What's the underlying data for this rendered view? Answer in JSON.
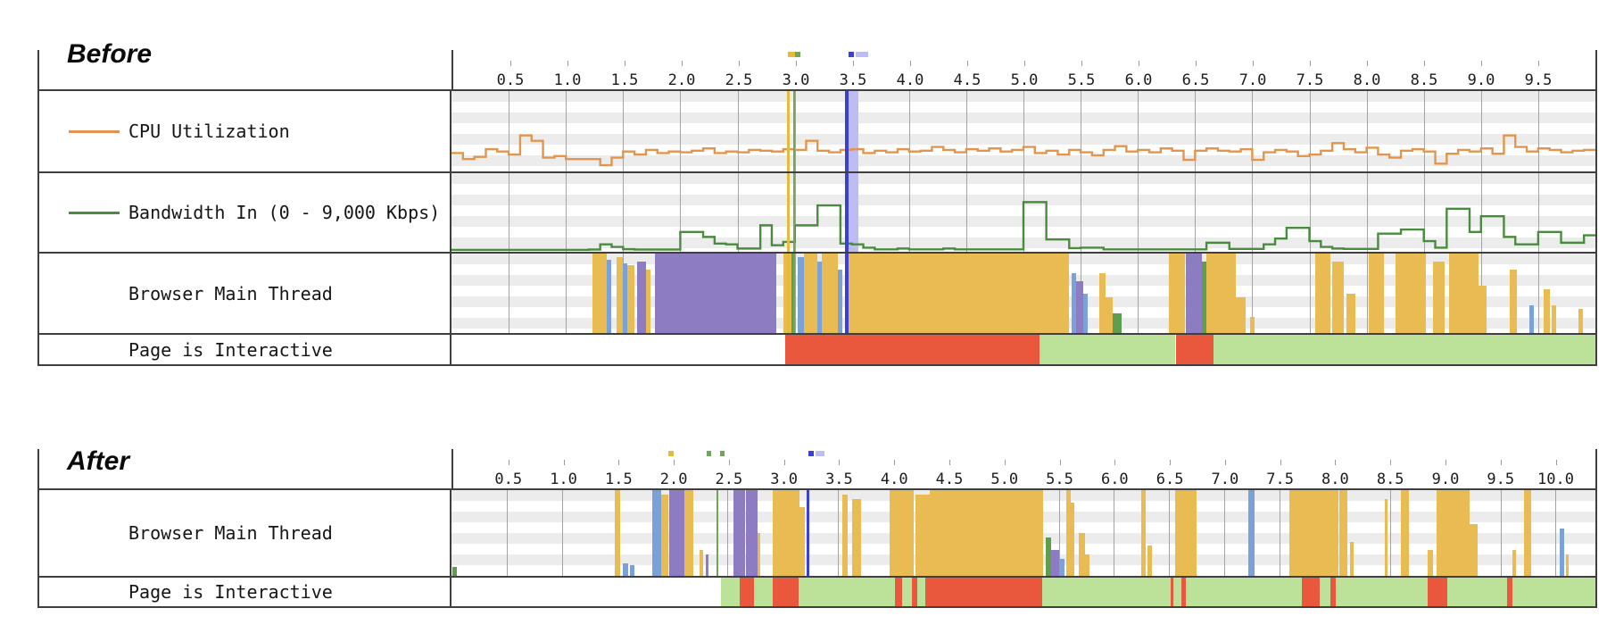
{
  "colors": {
    "cpu_line": "#e2954e",
    "bw_line": "#4a8c3f",
    "thread_script": "#e8bc52",
    "thread_layout": "#8e7cc3",
    "thread_paint": "#5f9e4e",
    "thread_comm": "#7aa2d8",
    "interactive_red": "#e9573d",
    "interactive_green": "#bce29a",
    "marker_gold": "#e3bb3d",
    "marker_green": "#74a35a",
    "marker_blue_dark": "#3d3fd4",
    "marker_blue_light": "#bdbdf5",
    "stripe_gray": "#ececec",
    "grid_line": "#a3a3a3",
    "border_dark": "#3f3f3f"
  },
  "chart_data": [
    {
      "id": "before",
      "title": "Before",
      "type": "timeline",
      "x_range": [
        0,
        10.0
      ],
      "ticks": [
        0.5,
        1.0,
        1.5,
        2.0,
        2.5,
        3.0,
        3.5,
        4.0,
        4.5,
        5.0,
        5.5,
        6.0,
        6.5,
        7.0,
        7.5,
        8.0,
        8.5,
        9.0,
        9.5
      ],
      "axis_marks": [
        {
          "t": 2.93,
          "color_key": "marker_gold",
          "w": 8
        },
        {
          "t": 2.99,
          "color_key": "marker_green",
          "w": 6
        },
        {
          "t": 3.46,
          "color_key": "marker_blue_dark",
          "w": 6
        },
        {
          "t": 3.52,
          "color_key": "marker_blue_light",
          "w": 14
        }
      ],
      "markers": [
        {
          "kind": "band",
          "t": 3.46,
          "t2": 3.56,
          "color_key": "marker_blue_light"
        },
        {
          "kind": "line",
          "t": 2.93,
          "w": 3,
          "color_key": "marker_gold"
        },
        {
          "kind": "line",
          "t": 2.99,
          "w": 2,
          "color_key": "marker_green"
        },
        {
          "kind": "line",
          "t": 3.44,
          "w": 4,
          "color_key": "marker_blue_dark"
        }
      ],
      "rows": [
        {
          "kind": "line",
          "label": "CPU Utilization",
          "color_key": "cpu_line",
          "y_range": [
            0,
            100
          ],
          "sample_step": 0.1,
          "values": [
            22,
            14,
            17,
            27,
            24,
            20,
            45,
            38,
            16,
            18,
            14,
            14,
            14,
            6,
            16,
            24,
            20,
            26,
            22,
            24,
            23,
            25,
            28,
            22,
            24,
            23,
            26,
            25,
            24,
            27,
            26,
            38,
            25,
            23,
            26,
            27,
            22,
            25,
            23,
            27,
            24,
            25,
            30,
            26,
            23,
            27,
            25,
            28,
            24,
            26,
            30,
            22,
            25,
            20,
            26,
            23,
            19,
            26,
            31,
            24,
            26,
            23,
            28,
            25,
            13,
            25,
            28,
            25,
            24,
            27,
            13,
            23,
            26,
            24,
            18,
            20,
            25,
            35,
            27,
            23,
            29,
            20,
            16,
            25,
            27,
            24,
            8,
            21,
            26,
            24,
            28,
            21,
            45,
            30,
            24,
            28,
            26,
            23,
            25,
            26
          ]
        },
        {
          "kind": "line",
          "label": "Bandwidth In (0 - 9,000 Kbps)",
          "color_key": "bw_line",
          "y_range": [
            0,
            9000
          ],
          "sample_step": 0.1,
          "values": [
            50,
            50,
            50,
            50,
            50,
            50,
            50,
            50,
            50,
            50,
            50,
            50,
            80,
            700,
            400,
            120,
            80,
            80,
            80,
            80,
            2200,
            2200,
            1600,
            800,
            700,
            200,
            200,
            3000,
            600,
            1000,
            3000,
            3000,
            5400,
            5400,
            800,
            700,
            300,
            100,
            100,
            200,
            100,
            100,
            100,
            200,
            100,
            100,
            100,
            100,
            100,
            100,
            5800,
            5800,
            1300,
            1300,
            250,
            300,
            300,
            100,
            100,
            100,
            100,
            100,
            100,
            100,
            100,
            100,
            900,
            900,
            150,
            150,
            150,
            700,
            1400,
            2700,
            2700,
            1100,
            400,
            200,
            150,
            150,
            150,
            2000,
            2000,
            2500,
            2500,
            1100,
            300,
            5000,
            5000,
            2200,
            4100,
            4100,
            1600,
            700,
            700,
            2200,
            2200,
            900,
            900,
            1800
          ]
        },
        {
          "kind": "bars",
          "label": "Browser Main Thread",
          "segments": [
            [
              1.23,
              1.36,
              "script",
              1.0
            ],
            [
              1.36,
              1.4,
              "comm",
              0.92
            ],
            [
              1.44,
              1.5,
              "script",
              0.96
            ],
            [
              1.5,
              1.54,
              "comm",
              0.88
            ],
            [
              1.54,
              1.6,
              "script",
              0.85
            ],
            [
              1.62,
              1.7,
              "layout",
              0.9
            ],
            [
              1.7,
              1.74,
              "script",
              0.8
            ],
            [
              1.78,
              2.84,
              "layout",
              1.0
            ],
            [
              2.9,
              2.97,
              "script",
              1.0
            ],
            [
              2.97,
              2.99,
              "paint",
              1.0
            ],
            [
              3.03,
              3.08,
              "comm",
              0.95
            ],
            [
              3.08,
              3.2,
              "script",
              1.0
            ],
            [
              3.2,
              3.24,
              "comm",
              0.9
            ],
            [
              3.24,
              3.38,
              "script",
              1.0
            ],
            [
              3.38,
              3.42,
              "comm",
              0.8
            ],
            [
              3.45,
              5.4,
              "script",
              1.0
            ],
            [
              5.42,
              5.46,
              "comm",
              0.75
            ],
            [
              5.46,
              5.52,
              "layout",
              0.65
            ],
            [
              5.52,
              5.56,
              "comm",
              0.5
            ],
            [
              5.66,
              5.72,
              "script",
              0.75
            ],
            [
              5.72,
              5.78,
              "script",
              0.45
            ],
            [
              5.78,
              5.86,
              "paint",
              0.25
            ],
            [
              6.27,
              6.41,
              "script",
              1.0
            ],
            [
              6.42,
              6.56,
              "layout",
              1.0
            ],
            [
              6.56,
              6.6,
              "paint",
              0.9
            ],
            [
              6.6,
              6.86,
              "script",
              1.0
            ],
            [
              6.86,
              6.94,
              "script",
              0.45
            ],
            [
              6.98,
              7.02,
              "script",
              0.2
            ],
            [
              7.55,
              7.68,
              "script",
              1.0
            ],
            [
              7.7,
              7.8,
              "script",
              0.9
            ],
            [
              7.82,
              7.9,
              "script",
              0.5
            ],
            [
              8.02,
              8.15,
              "script",
              1.0
            ],
            [
              8.25,
              8.52,
              "script",
              1.0
            ],
            [
              8.58,
              8.68,
              "script",
              0.9
            ],
            [
              8.72,
              8.98,
              "script",
              1.0
            ],
            [
              8.98,
              9.05,
              "script",
              0.6
            ],
            [
              9.25,
              9.31,
              "script",
              0.8
            ],
            [
              9.42,
              9.46,
              "comm",
              0.35
            ],
            [
              9.55,
              9.6,
              "script",
              0.55
            ],
            [
              9.62,
              9.66,
              "script",
              0.35
            ],
            [
              9.85,
              9.89,
              "script",
              0.3
            ]
          ]
        },
        {
          "kind": "band",
          "label": "Page is Interactive",
          "segments": [
            [
              0,
              2.92,
              "none"
            ],
            [
              2.92,
              5.14,
              "red"
            ],
            [
              5.14,
              6.33,
              "green"
            ],
            [
              6.33,
              6.66,
              "red"
            ],
            [
              6.66,
              10.0,
              "green"
            ]
          ]
        }
      ]
    },
    {
      "id": "after",
      "title": "After",
      "type": "timeline",
      "x_range": [
        0,
        10.36
      ],
      "ticks": [
        0.5,
        1.0,
        1.5,
        2.0,
        2.5,
        3.0,
        3.5,
        4.0,
        4.5,
        5.0,
        5.5,
        6.0,
        6.5,
        7.0,
        7.5,
        8.0,
        8.5,
        9.0,
        9.5,
        10.0
      ],
      "axis_marks": [
        {
          "t": 1.95,
          "color_key": "marker_gold",
          "w": 6
        },
        {
          "t": 2.3,
          "color_key": "marker_green",
          "w": 5
        },
        {
          "t": 2.42,
          "color_key": "marker_green",
          "w": 5
        },
        {
          "t": 3.22,
          "color_key": "marker_blue_dark",
          "w": 6
        },
        {
          "t": 3.29,
          "color_key": "marker_blue_light",
          "w": 10
        }
      ],
      "markers": [
        {
          "kind": "line",
          "t": 2.4,
          "w": 2,
          "color_key": "marker_green"
        },
        {
          "kind": "line",
          "t": 3.22,
          "w": 3,
          "color_key": "marker_blue_dark"
        }
      ],
      "rows": [
        {
          "kind": "bars",
          "label": "Browser Main Thread",
          "segments": [
            [
              0.01,
              0.05,
              "paint",
              0.1
            ],
            [
              1.48,
              1.53,
              "script",
              1.0
            ],
            [
              1.55,
              1.6,
              "comm",
              0.15
            ],
            [
              1.62,
              1.66,
              "comm",
              0.12
            ],
            [
              1.82,
              1.9,
              "comm",
              1.0
            ],
            [
              1.9,
              1.96,
              "script",
              0.95
            ],
            [
              1.97,
              2.11,
              "layout",
              1.0
            ],
            [
              2.11,
              2.19,
              "script",
              1.0
            ],
            [
              2.25,
              2.28,
              "script",
              0.3
            ],
            [
              2.3,
              2.33,
              "layout",
              0.25
            ],
            [
              2.55,
              2.66,
              "layout",
              1.0
            ],
            [
              2.67,
              2.77,
              "layout",
              1.0
            ],
            [
              2.77,
              2.8,
              "script",
              0.5
            ],
            [
              2.91,
              3.15,
              "script",
              1.0
            ],
            [
              3.15,
              3.2,
              "script",
              0.8
            ],
            [
              3.54,
              3.59,
              "script",
              0.95
            ],
            [
              3.63,
              3.71,
              "script",
              0.9
            ],
            [
              3.97,
              4.19,
              "script",
              1.0
            ],
            [
              4.2,
              4.33,
              "script",
              0.95
            ],
            [
              4.33,
              5.36,
              "script",
              1.0
            ],
            [
              5.38,
              5.43,
              "paint",
              0.45
            ],
            [
              5.43,
              5.5,
              "layout",
              0.3
            ],
            [
              5.5,
              5.55,
              "comm",
              0.2
            ],
            [
              5.57,
              5.61,
              "script",
              1.0
            ],
            [
              5.61,
              5.64,
              "script",
              0.85
            ],
            [
              5.68,
              5.74,
              "script",
              0.5
            ],
            [
              5.74,
              5.78,
              "script",
              0.25
            ],
            [
              6.25,
              6.29,
              "script",
              1.0
            ],
            [
              6.3,
              6.34,
              "script",
              0.35
            ],
            [
              6.55,
              6.75,
              "script",
              1.0
            ],
            [
              7.22,
              7.27,
              "comm",
              1.0
            ],
            [
              7.59,
              8.03,
              "script",
              1.0
            ],
            [
              8.04,
              8.11,
              "script",
              1.0
            ],
            [
              8.14,
              8.17,
              "script",
              0.4
            ],
            [
              8.45,
              8.48,
              "script",
              0.9
            ],
            [
              8.6,
              8.67,
              "script",
              1.0
            ],
            [
              8.84,
              8.89,
              "script",
              0.3
            ],
            [
              8.92,
              9.22,
              "script",
              1.0
            ],
            [
              9.22,
              9.29,
              "script",
              0.6
            ],
            [
              9.61,
              9.64,
              "script",
              0.3
            ],
            [
              9.71,
              9.78,
              "script",
              1.0
            ],
            [
              10.04,
              10.08,
              "comm",
              0.55
            ],
            [
              10.09,
              10.12,
              "script",
              0.25
            ]
          ]
        },
        {
          "kind": "band",
          "label": "Page is Interactive",
          "segments": [
            [
              0,
              2.44,
              "none"
            ],
            [
              2.44,
              2.61,
              "green"
            ],
            [
              2.61,
              2.74,
              "red"
            ],
            [
              2.74,
              2.91,
              "green"
            ],
            [
              2.91,
              3.14,
              "red"
            ],
            [
              3.14,
              4.02,
              "green"
            ],
            [
              4.02,
              4.08,
              "red"
            ],
            [
              4.08,
              4.17,
              "green"
            ],
            [
              4.17,
              4.22,
              "red"
            ],
            [
              4.22,
              4.29,
              "green"
            ],
            [
              4.29,
              5.35,
              "red"
            ],
            [
              5.35,
              6.51,
              "green"
            ],
            [
              6.51,
              6.54,
              "red"
            ],
            [
              6.54,
              6.61,
              "green"
            ],
            [
              6.61,
              6.65,
              "red"
            ],
            [
              6.65,
              7.7,
              "green"
            ],
            [
              7.7,
              7.86,
              "red"
            ],
            [
              7.86,
              7.96,
              "green"
            ],
            [
              7.96,
              8.01,
              "red"
            ],
            [
              8.01,
              8.84,
              "green"
            ],
            [
              8.84,
              9.02,
              "red"
            ],
            [
              9.02,
              9.56,
              "green"
            ],
            [
              9.56,
              9.61,
              "red"
            ],
            [
              9.61,
              10.36,
              "green"
            ]
          ]
        }
      ]
    }
  ]
}
